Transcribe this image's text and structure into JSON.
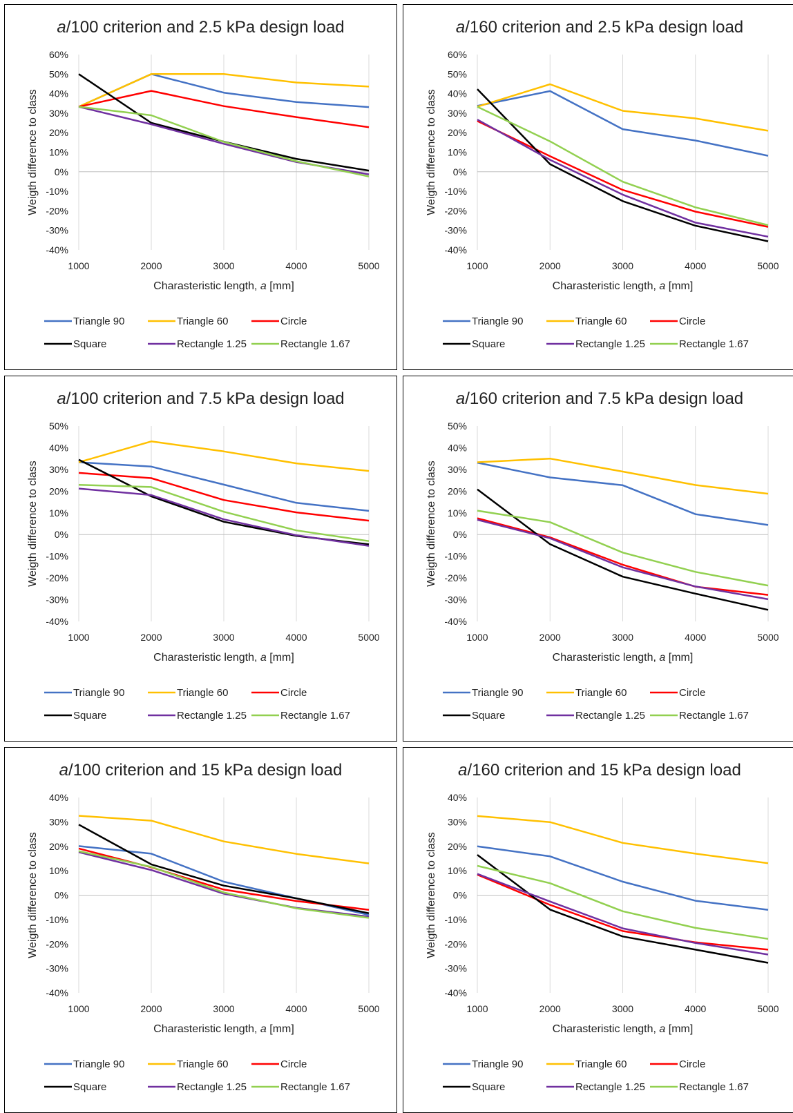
{
  "legend_labels": [
    "Triangle 90",
    "Triangle 60",
    "Circle",
    "Square",
    "Rectangle 1.25",
    "Rectangle 1.67"
  ],
  "colors": {
    "Triangle 90": "#4472C4",
    "Triangle 60": "#FFC000",
    "Circle": "#FF0000",
    "Square": "#000000",
    "Rectangle 1.25": "#7030A0",
    "Rectangle 1.67": "#92D050"
  },
  "chart_data": [
    {
      "type": "line",
      "title_italic": "a",
      "title_rest": "/100 criterion and 2.5 kPa design load",
      "xlabel_prefix": "Charasteristic length, ",
      "xlabel_italic": "a",
      "xlabel_suffix": " [mm]",
      "ylabel": "Weigth difference to class",
      "x": [
        1000,
        2000,
        3000,
        4000,
        5000
      ],
      "xlim": [
        1000,
        5000
      ],
      "ylim": [
        -40,
        60
      ],
      "yticks": [
        -40,
        -30,
        -20,
        -10,
        0,
        10,
        20,
        30,
        40,
        50,
        60
      ],
      "y_unit": "%",
      "grid": "vertical",
      "legend_position": "bottom",
      "series": [
        {
          "name": "Triangle 90",
          "values": [
            33.3,
            50,
            40.5,
            35.7,
            33.1
          ]
        },
        {
          "name": "Triangle 60",
          "values": [
            33.3,
            50,
            50,
            45.7,
            43.6
          ]
        },
        {
          "name": "Circle",
          "values": [
            33.3,
            41.4,
            33.6,
            28,
            22.8
          ]
        },
        {
          "name": "Square",
          "values": [
            50,
            25,
            15.4,
            6.6,
            0.6
          ]
        },
        {
          "name": "Rectangle 1.25",
          "values": [
            33.3,
            24.3,
            14.3,
            5,
            -1.3
          ]
        },
        {
          "name": "Rectangle 1.67",
          "values": [
            33.3,
            28.9,
            15.3,
            5.4,
            -2.4
          ]
        }
      ]
    },
    {
      "type": "line",
      "title_italic": "a",
      "title_rest": "/160 criterion and 2.5 kPa design load",
      "xlabel_prefix": "Charasteristic length, ",
      "xlabel_italic": "a",
      "xlabel_suffix": " [mm]",
      "ylabel": "Weigth difference to class",
      "x": [
        1000,
        2000,
        3000,
        4000,
        5000
      ],
      "xlim": [
        1000,
        5000
      ],
      "ylim": [
        -40,
        60
      ],
      "yticks": [
        -40,
        -30,
        -20,
        -10,
        0,
        10,
        20,
        30,
        40,
        50,
        60
      ],
      "y_unit": "%",
      "grid": "vertical",
      "legend_position": "bottom",
      "series": [
        {
          "name": "Triangle 90",
          "values": [
            33.7,
            41.3,
            21.8,
            16,
            8.2
          ]
        },
        {
          "name": "Triangle 60",
          "values": [
            33.3,
            44.8,
            31.2,
            27.3,
            21
          ]
        },
        {
          "name": "Circle",
          "values": [
            26,
            8,
            -9.3,
            -20.4,
            -28.2
          ]
        },
        {
          "name": "Square",
          "values": [
            42.3,
            3.9,
            -15,
            -27.6,
            -35.6
          ]
        },
        {
          "name": "Rectangle 1.25",
          "values": [
            26.7,
            6.1,
            -11.7,
            -26,
            -33.2
          ]
        },
        {
          "name": "Rectangle 1.67",
          "values": [
            33.3,
            15.6,
            -5.1,
            -18.2,
            -27.3
          ]
        }
      ]
    },
    {
      "type": "line",
      "title_italic": "a",
      "title_rest": "/100 criterion and 7.5 kPa design load",
      "xlabel_prefix": "Charasteristic length, ",
      "xlabel_italic": "a",
      "xlabel_suffix": " [mm]",
      "ylabel": "Weigth difference to class",
      "x": [
        1000,
        2000,
        3000,
        4000,
        5000
      ],
      "xlim": [
        1000,
        5000
      ],
      "ylim": [
        -40,
        50
      ],
      "yticks": [
        -40,
        -30,
        -20,
        -10,
        0,
        10,
        20,
        30,
        40,
        50
      ],
      "y_unit": "%",
      "grid": "vertical",
      "legend_position": "bottom",
      "series": [
        {
          "name": "Triangle 90",
          "values": [
            33.3,
            31.3,
            23,
            14.6,
            10.9
          ]
        },
        {
          "name": "Triangle 60",
          "values": [
            33.3,
            42.9,
            38.3,
            32.8,
            29.3
          ]
        },
        {
          "name": "Circle",
          "values": [
            28.4,
            26,
            15.9,
            10.2,
            6.4
          ]
        },
        {
          "name": "Square",
          "values": [
            34.5,
            17.6,
            5.9,
            -0.6,
            -4.5
          ]
        },
        {
          "name": "Rectangle 1.25",
          "values": [
            21.2,
            18.2,
            7,
            -0.3,
            -5.2
          ]
        },
        {
          "name": "Rectangle 1.67",
          "values": [
            22.9,
            21.9,
            10.5,
            1.9,
            -3
          ]
        }
      ]
    },
    {
      "type": "line",
      "title_italic": "a",
      "title_rest": "/160 criterion and 7.5 kPa design load",
      "xlabel_prefix": "Charasteristic length, ",
      "xlabel_italic": "a",
      "xlabel_suffix": " [mm]",
      "ylabel": "Weigth difference to class",
      "x": [
        1000,
        2000,
        3000,
        4000,
        5000
      ],
      "xlim": [
        1000,
        5000
      ],
      "ylim": [
        -40,
        50
      ],
      "yticks": [
        -40,
        -30,
        -20,
        -10,
        0,
        10,
        20,
        30,
        40,
        50
      ],
      "y_unit": "%",
      "grid": "vertical",
      "legend_position": "bottom",
      "series": [
        {
          "name": "Triangle 90",
          "values": [
            33.1,
            26.3,
            22.7,
            9.4,
            4.4
          ]
        },
        {
          "name": "Triangle 60",
          "values": [
            33.3,
            35,
            29,
            22.8,
            18.8
          ]
        },
        {
          "name": "Circle",
          "values": [
            7.5,
            -1.3,
            -13.9,
            -24,
            -27.8
          ]
        },
        {
          "name": "Square",
          "values": [
            20.8,
            -4.4,
            -19.4,
            -27.2,
            -34.7
          ]
        },
        {
          "name": "Rectangle 1.25",
          "values": [
            6.8,
            -1.7,
            -15.1,
            -23.9,
            -29.8
          ]
        },
        {
          "name": "Rectangle 1.67",
          "values": [
            11,
            5.7,
            -8.3,
            -17.2,
            -23.5
          ]
        }
      ]
    },
    {
      "type": "line",
      "title_italic": "a",
      "title_rest": "/100 criterion and 15 kPa design load",
      "xlabel_prefix": "Charasteristic length, ",
      "xlabel_italic": "a",
      "xlabel_suffix": " [mm]",
      "ylabel": "Weigth difference to class",
      "x": [
        1000,
        2000,
        3000,
        4000,
        5000
      ],
      "xlim": [
        1000,
        5000
      ],
      "ylim": [
        -40,
        40
      ],
      "yticks": [
        -40,
        -30,
        -20,
        -10,
        0,
        10,
        20,
        30,
        40
      ],
      "y_unit": "%",
      "grid": "vertical",
      "legend_position": "bottom",
      "series": [
        {
          "name": "Triangle 90",
          "values": [
            20.1,
            17,
            5.5,
            -1.3,
            -8.1
          ]
        },
        {
          "name": "Triangle 60",
          "values": [
            32.5,
            30.5,
            22,
            16.9,
            13
          ]
        },
        {
          "name": "Circle",
          "values": [
            19.1,
            11.4,
            2.3,
            -2.4,
            -6
          ]
        },
        {
          "name": "Square",
          "values": [
            28.9,
            12.6,
            3.9,
            -1.3,
            -7.4
          ]
        },
        {
          "name": "Rectangle 1.25",
          "values": [
            17.6,
            10.3,
            0.6,
            -5.2,
            -8.8
          ]
        },
        {
          "name": "Rectangle 1.67",
          "values": [
            18,
            11.6,
            1.1,
            -5.4,
            -9.3
          ]
        }
      ]
    },
    {
      "type": "line",
      "title_italic": "a",
      "title_rest": "/160 criterion and 15 kPa design load",
      "xlabel_prefix": "Charasteristic length, ",
      "xlabel_italic": "a",
      "xlabel_suffix": " [mm]",
      "ylabel": "Weigth difference to class",
      "x": [
        1000,
        2000,
        3000,
        4000,
        5000
      ],
      "xlim": [
        1000,
        5000
      ],
      "ylim": [
        -40,
        40
      ],
      "yticks": [
        -40,
        -30,
        -20,
        -10,
        0,
        10,
        20,
        30,
        40
      ],
      "y_unit": "%",
      "grid": "vertical",
      "legend_position": "bottom",
      "series": [
        {
          "name": "Triangle 90",
          "values": [
            20,
            15.9,
            5.5,
            -2.3,
            -6
          ]
        },
        {
          "name": "Triangle 60",
          "values": [
            32.4,
            29.9,
            21.4,
            17,
            13.1
          ]
        },
        {
          "name": "Circle",
          "values": [
            8.4,
            -4,
            -14.7,
            -19.3,
            -22.3
          ]
        },
        {
          "name": "Square",
          "values": [
            16.5,
            -5.9,
            -16.9,
            -22.3,
            -27.7
          ]
        },
        {
          "name": "Rectangle 1.25",
          "values": [
            8.7,
            -2.6,
            -13.6,
            -19.6,
            -24.3
          ]
        },
        {
          "name": "Rectangle 1.67",
          "values": [
            12,
            4.9,
            -6.6,
            -13.4,
            -17.9
          ]
        }
      ]
    }
  ]
}
